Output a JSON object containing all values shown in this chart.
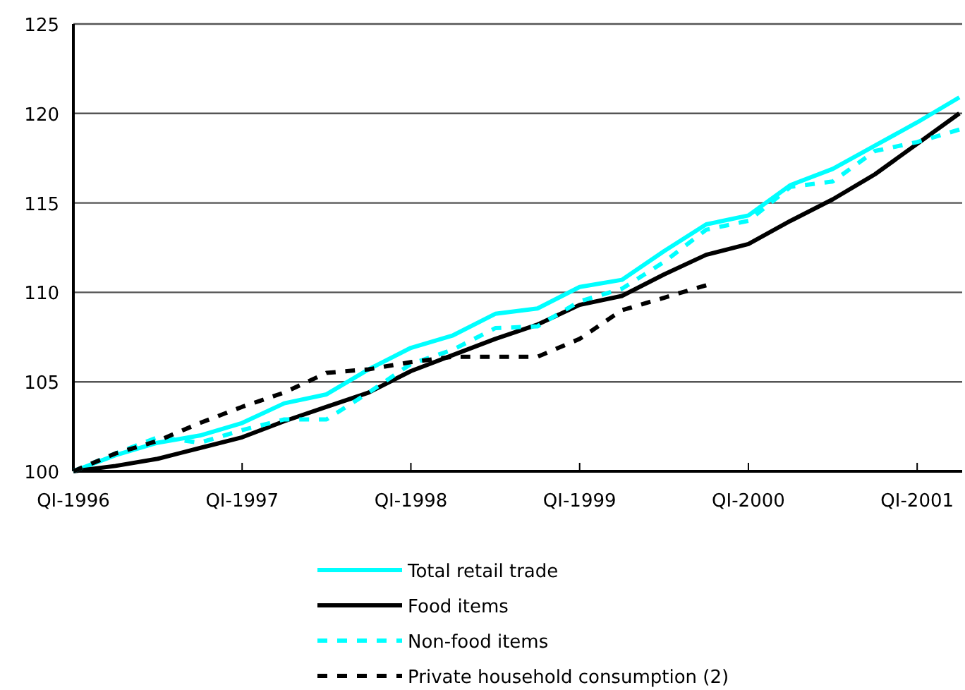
{
  "chart_data": {
    "type": "line",
    "categories": [
      "QI-1996",
      null,
      null,
      null,
      "QI-1997",
      null,
      null,
      null,
      "QI-1998",
      null,
      null,
      null,
      "QI-1999",
      null,
      null,
      null,
      "QI-2000",
      null,
      null,
      null,
      "QI-2001",
      null
    ],
    "ylim": [
      100,
      125
    ],
    "yticks": [
      100,
      105,
      110,
      115,
      120,
      125
    ],
    "grid": "y",
    "legend": "bottom",
    "marker": "none",
    "series": [
      {
        "name": "Total retail trade",
        "color": "#00ffff",
        "line_style": "solid",
        "values": [
          100,
          100.9,
          101.6,
          102.0,
          102.7,
          103.8,
          104.3,
          105.7,
          106.9,
          107.6,
          108.8,
          109.1,
          110.3,
          110.7,
          112.3,
          113.8,
          114.3,
          116.0,
          116.9,
          118.2,
          119.5,
          120.9
        ]
      },
      {
        "name": "Food items",
        "color": "#000000",
        "line_style": "solid",
        "values": [
          100,
          100.3,
          100.7,
          101.3,
          101.9,
          102.8,
          103.6,
          104.4,
          105.6,
          106.5,
          107.4,
          108.2,
          109.3,
          109.8,
          111.0,
          112.1,
          112.7,
          114.0,
          115.2,
          116.6,
          118.3,
          120.0
        ]
      },
      {
        "name": "Non-food items",
        "color": "#00ffff",
        "line_style": "dashed",
        "values": [
          100,
          101.0,
          101.9,
          101.6,
          102.3,
          102.9,
          102.9,
          104.4,
          106.0,
          106.8,
          108.0,
          108.1,
          109.5,
          110.2,
          111.7,
          113.5,
          114.0,
          115.9,
          116.2,
          117.9,
          118.4,
          119.1
        ]
      },
      {
        "name": "Private household consumption  (2)",
        "color": "#000000",
        "line_style": "dashed",
        "values": [
          100,
          101.0,
          101.7,
          102.7,
          103.6,
          104.4,
          105.5,
          105.7,
          106.1,
          106.4,
          106.4,
          106.4,
          107.4,
          109.0,
          109.7,
          110.4,
          null,
          null,
          null,
          null,
          null,
          null
        ]
      }
    ]
  }
}
